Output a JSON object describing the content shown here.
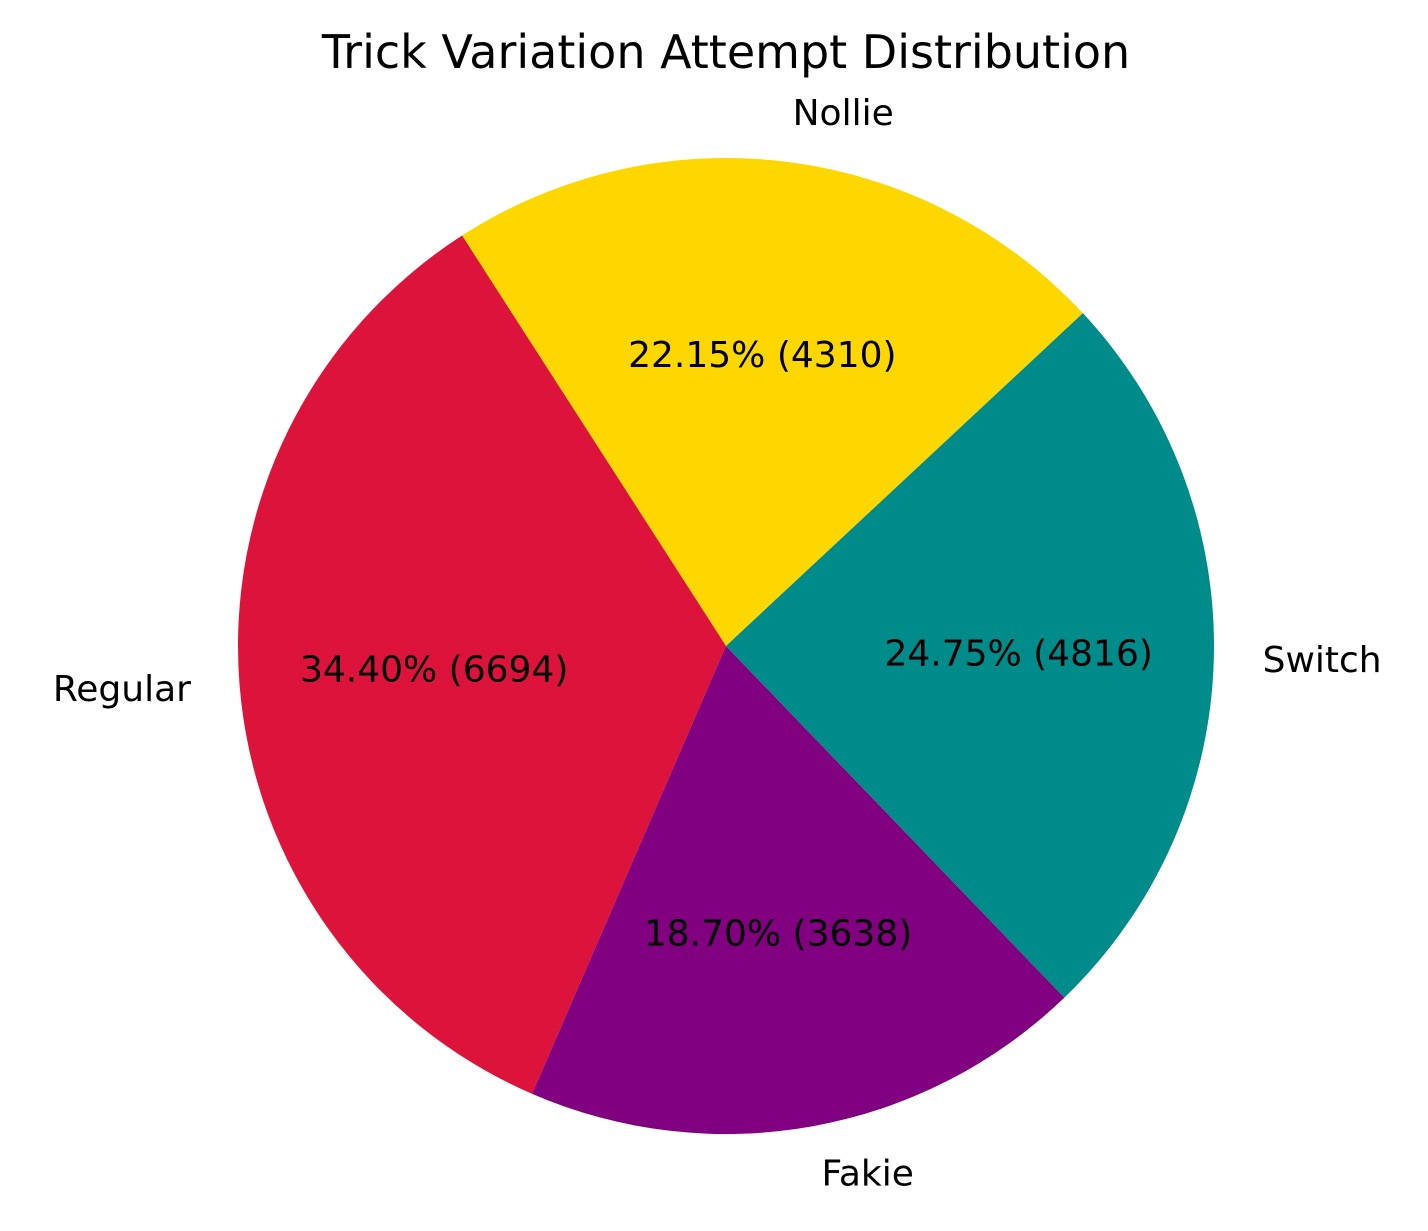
{
  "chart_data": {
    "type": "pie",
    "title": "Trick Variation Attempt Distribution",
    "slices": [
      {
        "label": "Nollie",
        "value": 4310,
        "percent_label": "22.15% (4310)",
        "color": "#FFD700"
      },
      {
        "label": "Regular",
        "value": 6694,
        "percent_label": "34.40% (6694)",
        "color": "#DC143C"
      },
      {
        "label": "Fakie",
        "value": 3638,
        "percent_label": "18.70% (3638)",
        "color": "#800080"
      },
      {
        "label": "Switch",
        "value": 4816,
        "percent_label": "24.75% (4816)",
        "color": "#008B8B"
      }
    ],
    "start_angle_deg": 43,
    "direction": "counterclockwise",
    "legend": "none"
  }
}
